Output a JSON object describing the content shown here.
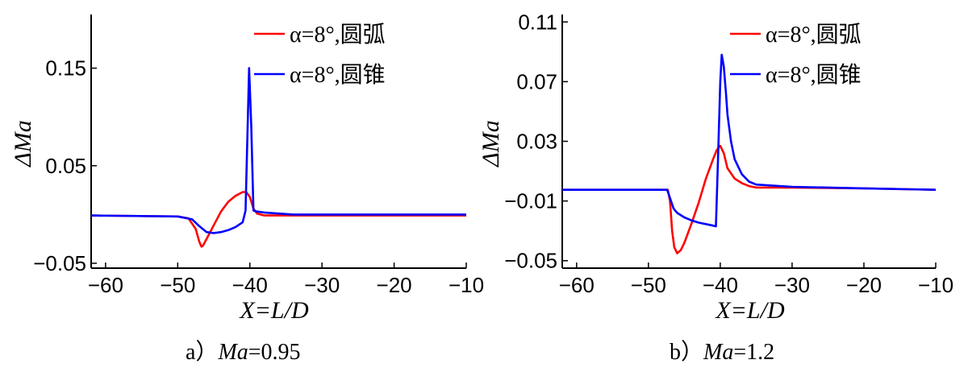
{
  "chart_data": [
    {
      "type": "line",
      "caption_prefix": "a）",
      "caption_var": "Ma",
      "caption_value": "=0.95",
      "xlabel": "X=L/D",
      "ylabel": "ΔMa",
      "xlim": [
        -62,
        -10
      ],
      "ylim": [
        -0.055,
        0.205
      ],
      "xticks": [
        -60,
        -50,
        -40,
        -30,
        -20,
        -10
      ],
      "xtick_labels": [
        "−60",
        "−50",
        "−40",
        "−30",
        "−20",
        "−10"
      ],
      "yticks": [
        -0.05,
        0.05,
        0.15
      ],
      "ytick_labels": [
        "−0.05",
        "0.05",
        "0.15"
      ],
      "grid": false,
      "legend_position": "top-right",
      "series": [
        {
          "name": "α=8°,圆弧",
          "color": "#ff0000",
          "x": [
            -62,
            -50,
            -48.5,
            -47.5,
            -47,
            -46.7,
            -46.5,
            -46,
            -45,
            -44,
            -43,
            -42,
            -41,
            -40.5,
            -40,
            -39.5,
            -39,
            -38,
            -36,
            -34,
            -30,
            -20,
            -10
          ],
          "y": [
            -0.001,
            -0.002,
            -0.004,
            -0.015,
            -0.028,
            -0.033,
            -0.032,
            -0.025,
            -0.011,
            0.003,
            0.013,
            0.019,
            0.023,
            0.023,
            0.018,
            0.006,
            0.001,
            -0.001,
            -0.001,
            -0.001,
            -0.001,
            -0.001,
            -0.001
          ]
        },
        {
          "name": "α=8°,圆锥",
          "color": "#0000ff",
          "x": [
            -62,
            -50,
            -48,
            -47,
            -46,
            -45,
            -44,
            -43,
            -42,
            -41,
            -40.6,
            -40.3,
            -40.1,
            -39.8,
            -39.5,
            -39,
            -38,
            -36,
            -34,
            -30,
            -20,
            -10
          ],
          "y": [
            -0.001,
            -0.002,
            -0.005,
            -0.012,
            -0.018,
            -0.019,
            -0.018,
            -0.016,
            -0.013,
            -0.008,
            0.004,
            0.09,
            0.15,
            0.09,
            0.004,
            0.003,
            0.002,
            0.001,
            0.0,
            0.0,
            0.0,
            0.0
          ]
        }
      ]
    },
    {
      "type": "line",
      "caption_prefix": "b）",
      "caption_var": "Ma",
      "caption_value": "=1.2",
      "xlabel": "X=L/D",
      "ylabel": "ΔMa",
      "xlim": [
        -62,
        -10
      ],
      "ylim": [
        -0.055,
        0.115
      ],
      "xticks": [
        -60,
        -50,
        -40,
        -30,
        -20,
        -10
      ],
      "xtick_labels": [
        "−60",
        "−50",
        "−40",
        "−30",
        "−20",
        "−10"
      ],
      "yticks": [
        -0.05,
        -0.01,
        0.03,
        0.07,
        0.11
      ],
      "ytick_labels": [
        "−0.05",
        "−0.01",
        "0.03",
        "0.07",
        "0.11"
      ],
      "grid": false,
      "legend_position": "top-right",
      "series": [
        {
          "name": "α=8°,圆弧",
          "color": "#ff0000",
          "x": [
            -62,
            -50,
            -47.3,
            -47,
            -46.7,
            -46.4,
            -46,
            -45.5,
            -45,
            -44,
            -43,
            -42,
            -41,
            -40.5,
            -40,
            -39.5,
            -39,
            -38,
            -37,
            -36,
            -35,
            -30,
            -20,
            -10
          ],
          "y": [
            -0.0025,
            -0.0025,
            -0.0025,
            -0.01,
            -0.03,
            -0.041,
            -0.045,
            -0.043,
            -0.038,
            -0.025,
            -0.011,
            0.005,
            0.018,
            0.024,
            0.027,
            0.022,
            0.012,
            0.005,
            0.002,
            0.0,
            -0.001,
            -0.001,
            -0.0015,
            -0.0025
          ]
        },
        {
          "name": "α=8°,圆锥",
          "color": "#0000ff",
          "x": [
            -62,
            -50,
            -47.4,
            -47,
            -46.5,
            -46,
            -45,
            -44,
            -43,
            -42,
            -41,
            -40.6,
            -40.3,
            -40,
            -39.8,
            -39.5,
            -39.2,
            -39,
            -38.5,
            -38,
            -37,
            -36,
            -35,
            -30,
            -20,
            -10
          ],
          "y": [
            -0.0025,
            -0.0025,
            -0.0025,
            -0.008,
            -0.015,
            -0.018,
            -0.021,
            -0.023,
            -0.0245,
            -0.0255,
            -0.0265,
            -0.027,
            0.02,
            0.07,
            0.088,
            0.08,
            0.062,
            0.048,
            0.03,
            0.018,
            0.008,
            0.003,
            0.001,
            -0.0005,
            -0.0015,
            -0.0025
          ]
        }
      ]
    }
  ]
}
